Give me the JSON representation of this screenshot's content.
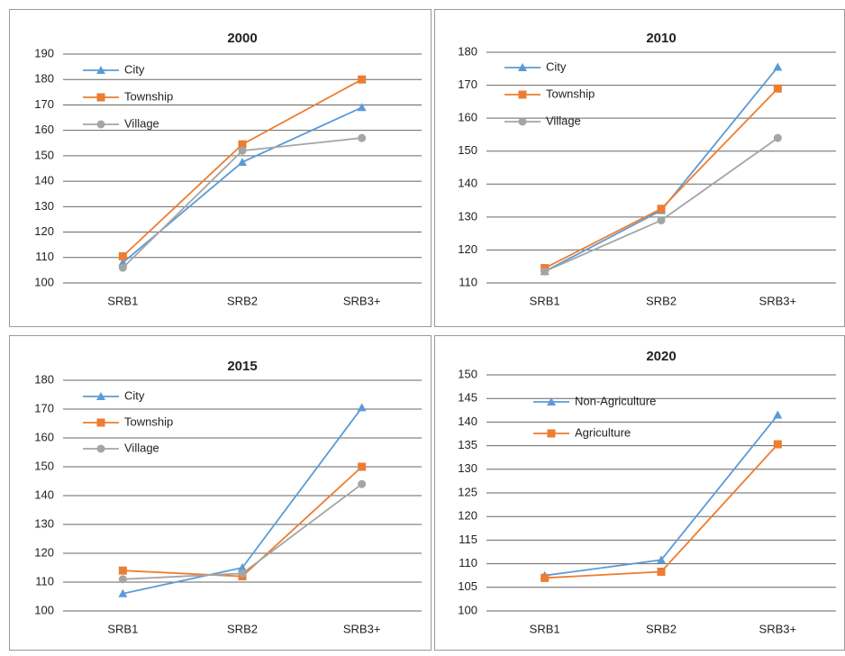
{
  "chart_data": [
    {
      "type": "line",
      "title": "2000",
      "categories": [
        "SRB1",
        "SRB2",
        "SRB3+"
      ],
      "series": [
        {
          "name": "City",
          "color": "#5b9bd5",
          "marker": "triangle",
          "values": [
            108,
            147.5,
            169
          ]
        },
        {
          "name": "Township",
          "color": "#ed7d31",
          "marker": "square",
          "values": [
            110.5,
            154.5,
            180
          ]
        },
        {
          "name": "Village",
          "color": "#a5a5a5",
          "marker": "circle",
          "values": [
            106,
            152,
            157
          ]
        }
      ],
      "ylim": [
        100,
        190
      ],
      "yticks": [
        100,
        110,
        120,
        130,
        140,
        150,
        160,
        170,
        180,
        190
      ],
      "grid": true
    },
    {
      "type": "line",
      "title": "2010",
      "categories": [
        "SRB1",
        "SRB2",
        "SRB3+"
      ],
      "series": [
        {
          "name": "City",
          "color": "#5b9bd5",
          "marker": "triangle",
          "values": [
            113.5,
            132,
            175.5
          ]
        },
        {
          "name": "Township",
          "color": "#ed7d31",
          "marker": "square",
          "values": [
            114.5,
            132.5,
            169
          ]
        },
        {
          "name": "Village",
          "color": "#a5a5a5",
          "marker": "circle",
          "values": [
            113.5,
            129,
            154
          ]
        }
      ],
      "ylim": [
        110,
        180
      ],
      "yticks": [
        110,
        120,
        130,
        140,
        150,
        160,
        170,
        180
      ],
      "grid": true
    },
    {
      "type": "line",
      "title": "2015",
      "categories": [
        "SRB1",
        "SRB2",
        "SRB3+"
      ],
      "series": [
        {
          "name": "City",
          "color": "#5b9bd5",
          "marker": "triangle",
          "values": [
            106,
            115,
            170.5
          ]
        },
        {
          "name": "Township",
          "color": "#ed7d31",
          "marker": "square",
          "values": [
            114,
            112,
            150
          ]
        },
        {
          "name": "Village",
          "color": "#a5a5a5",
          "marker": "circle",
          "values": [
            111,
            113,
            144
          ]
        }
      ],
      "ylim": [
        100,
        180
      ],
      "yticks": [
        100,
        110,
        120,
        130,
        140,
        150,
        160,
        170,
        180
      ],
      "grid": true
    },
    {
      "type": "line",
      "title": "2020",
      "categories": [
        "SRB1",
        "SRB2",
        "SRB3+"
      ],
      "series": [
        {
          "name": "Non-Agriculture",
          "color": "#5b9bd5",
          "marker": "triangle",
          "values": [
            107.5,
            110.8,
            141.5
          ]
        },
        {
          "name": "Agriculture",
          "color": "#ed7d31",
          "marker": "square",
          "values": [
            107,
            108.3,
            135.3
          ]
        }
      ],
      "ylim": [
        100,
        150
      ],
      "yticks": [
        100,
        105,
        110,
        115,
        120,
        125,
        130,
        135,
        140,
        145,
        150
      ],
      "grid": true
    }
  ]
}
